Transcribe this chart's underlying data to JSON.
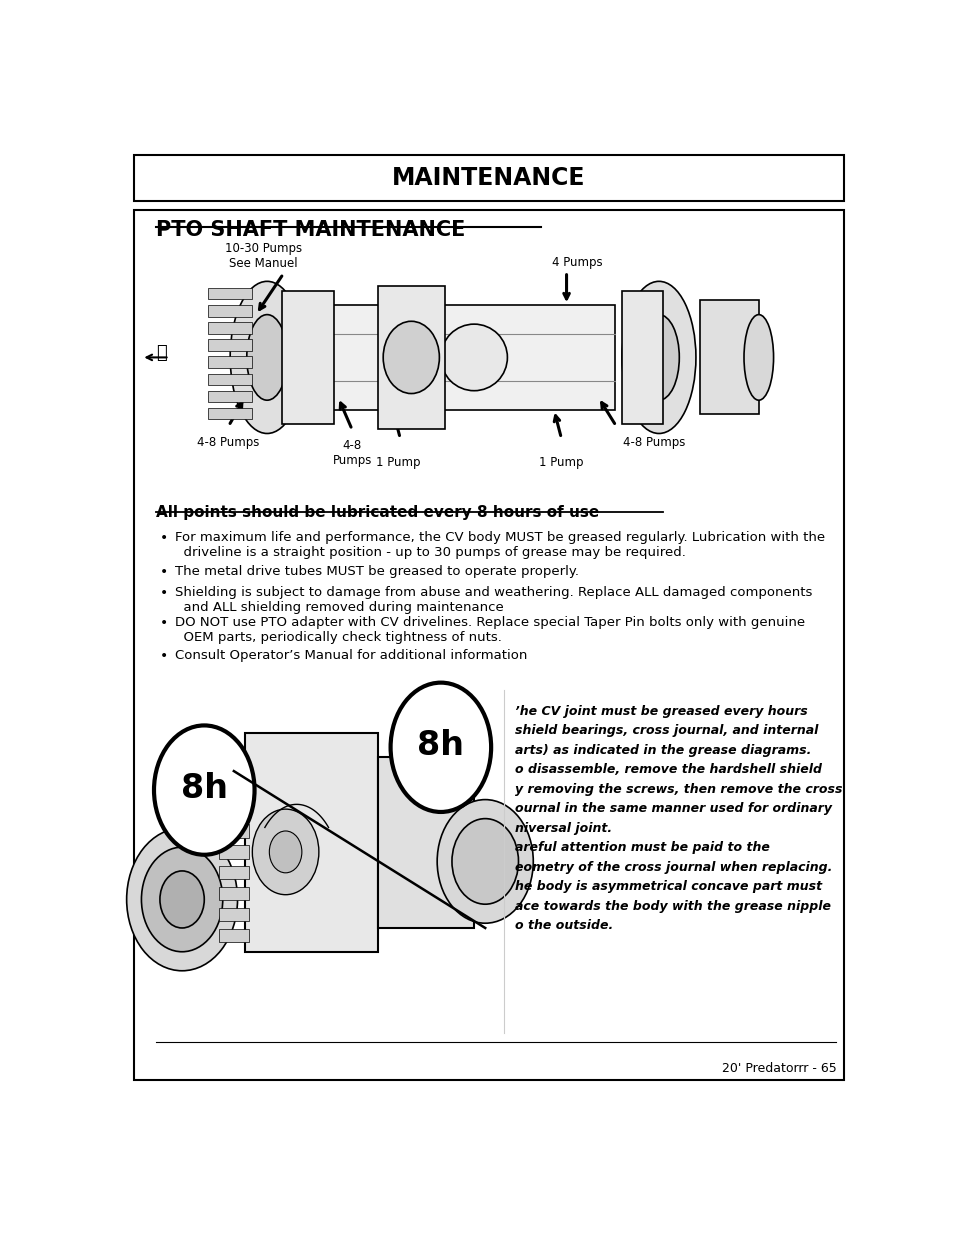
{
  "page_bg": "#ffffff",
  "header_text": "MAINTENANCE",
  "section_title": "PTO SHAFT MAINTENANCE",
  "lubrication_heading": "All points should be lubricated every 8 hours of use",
  "bullet_points": [
    "For maximum life and performance, the CV body MUST be greased regularly. Lubrication with the\n  driveline is a straight position - up to 30 pumps of grease may be required.",
    "The metal drive tubes MUST be greased to operate properly.",
    "Shielding is subject to damage from abuse and weathering. Replace ALL damaged components\n  and ALL shielding removed during maintenance",
    "DO NOT use PTO adapter with CV drivelines. Replace special Taper Pin bolts only with genuine\n  OEM parts, periodically check tightness of nuts.",
    "Consult Operator’s Manual for additional information"
  ],
  "right_text": "’he CV joint must be greased every hours\nshield bearings, cross journal, and internal\narts) as indicated in the grease diagrams.\no disassemble, remove the hardshell shield\ny removing the screws, then remove the cross\nournal in the same manner used for ordinary\nniversal joint.\nareful attention must be paid to the\neometry of the cross journal when replacing.\nhe body is asymmetrical concave part must\nace towards the body with the grease nipple\no the outside.",
  "footer_text": "20' Predatorrr - 65"
}
